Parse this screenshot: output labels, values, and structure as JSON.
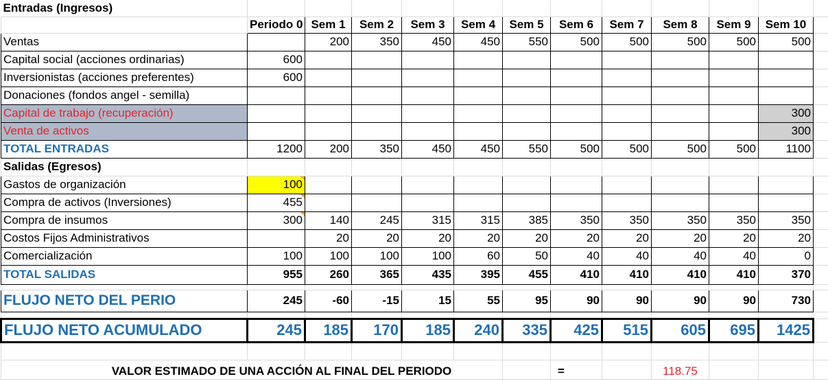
{
  "sections": {
    "entradas_title": "Entradas (Ingresos)",
    "salidas_title": "Salidas (Egresos)"
  },
  "periods": [
    "Periodo 0",
    "Sem 1",
    "Sem 2",
    "Sem 3",
    "Sem 4",
    "Sem 5",
    "Sem 6",
    "Sem 7",
    "Sem 8",
    "Sem 9",
    "Sem 10"
  ],
  "entradas": [
    {
      "label": "Ventas",
      "values": [
        "",
        "200",
        "350",
        "450",
        "450",
        "550",
        "500",
        "500",
        "500",
        "500",
        "500"
      ]
    },
    {
      "label": "Capital social (acciones ordinarias)",
      "values": [
        "600",
        "",
        "",
        "",
        "",
        "",
        "",
        "",
        "",
        "",
        ""
      ]
    },
    {
      "label": "Inversionistas (acciones preferentes)",
      "values": [
        "600",
        "",
        "",
        "",
        "",
        "",
        "",
        "",
        "",
        "",
        ""
      ]
    },
    {
      "label": "Donaciones (fondos angel - semilla)",
      "values": [
        "",
        "",
        "",
        "",
        "",
        "",
        "",
        "",
        "",
        "",
        ""
      ]
    },
    {
      "label": "Capital de trabajo (recuperación)",
      "values": [
        "",
        "",
        "",
        "",
        "",
        "",
        "",
        "",
        "",
        "",
        "300"
      ]
    },
    {
      "label": "Venta de activos",
      "values": [
        "",
        "",
        "",
        "",
        "",
        "",
        "",
        "",
        "",
        "",
        "300"
      ]
    }
  ],
  "total_entradas": {
    "label": "TOTAL ENTRADAS",
    "values": [
      "1200",
      "200",
      "350",
      "450",
      "450",
      "550",
      "500",
      "500",
      "500",
      "500",
      "1100"
    ]
  },
  "salidas": [
    {
      "label": "Gastos de organización",
      "values": [
        "100",
        "",
        "",
        "",
        "",
        "",
        "",
        "",
        "",
        "",
        ""
      ]
    },
    {
      "label": "Compra de activos (Inversiones)",
      "values": [
        "455",
        "",
        "",
        "",
        "",
        "",
        "",
        "",
        "",
        "",
        ""
      ]
    },
    {
      "label": "Compra de insumos",
      "values": [
        "300",
        "140",
        "245",
        "315",
        "315",
        "385",
        "350",
        "350",
        "350",
        "350",
        "350"
      ]
    },
    {
      "label": "Costos Fijos Administrativos",
      "values": [
        "",
        "20",
        "20",
        "20",
        "20",
        "20",
        "20",
        "20",
        "20",
        "20",
        "20"
      ]
    },
    {
      "label": "Comercialización",
      "values": [
        "100",
        "100",
        "100",
        "100",
        "60",
        "50",
        "40",
        "40",
        "40",
        "40",
        "0"
      ]
    }
  ],
  "total_salidas": {
    "label": "TOTAL SALIDAS",
    "values": [
      "955",
      "260",
      "365",
      "435",
      "395",
      "455",
      "410",
      "410",
      "410",
      "410",
      "370"
    ]
  },
  "flujo_neto": {
    "label": "FLUJO NETO DEL PERIO",
    "values": [
      "245",
      "-60",
      "-15",
      "15",
      "55",
      "95",
      "90",
      "90",
      "90",
      "90",
      "730"
    ]
  },
  "flujo_acumulado": {
    "label": "FLUJO NETO ACUMULADO",
    "values": [
      "245",
      "185",
      "170",
      "185",
      "240",
      "335",
      "425",
      "515",
      "605",
      "695",
      "1425"
    ]
  },
  "footer": {
    "label": "VALOR ESTIMADO DE UNA ACCIÓN AL FINAL DEL PERIODO",
    "equals": "=",
    "value": "118.75"
  },
  "colors": {
    "accent_blue": "#1f6fb5",
    "red_text": "#e0252b",
    "highlight_yellow": "#ffff00",
    "shade_blue": "#adb9ca",
    "shade_gray": "#d0d0d0"
  }
}
